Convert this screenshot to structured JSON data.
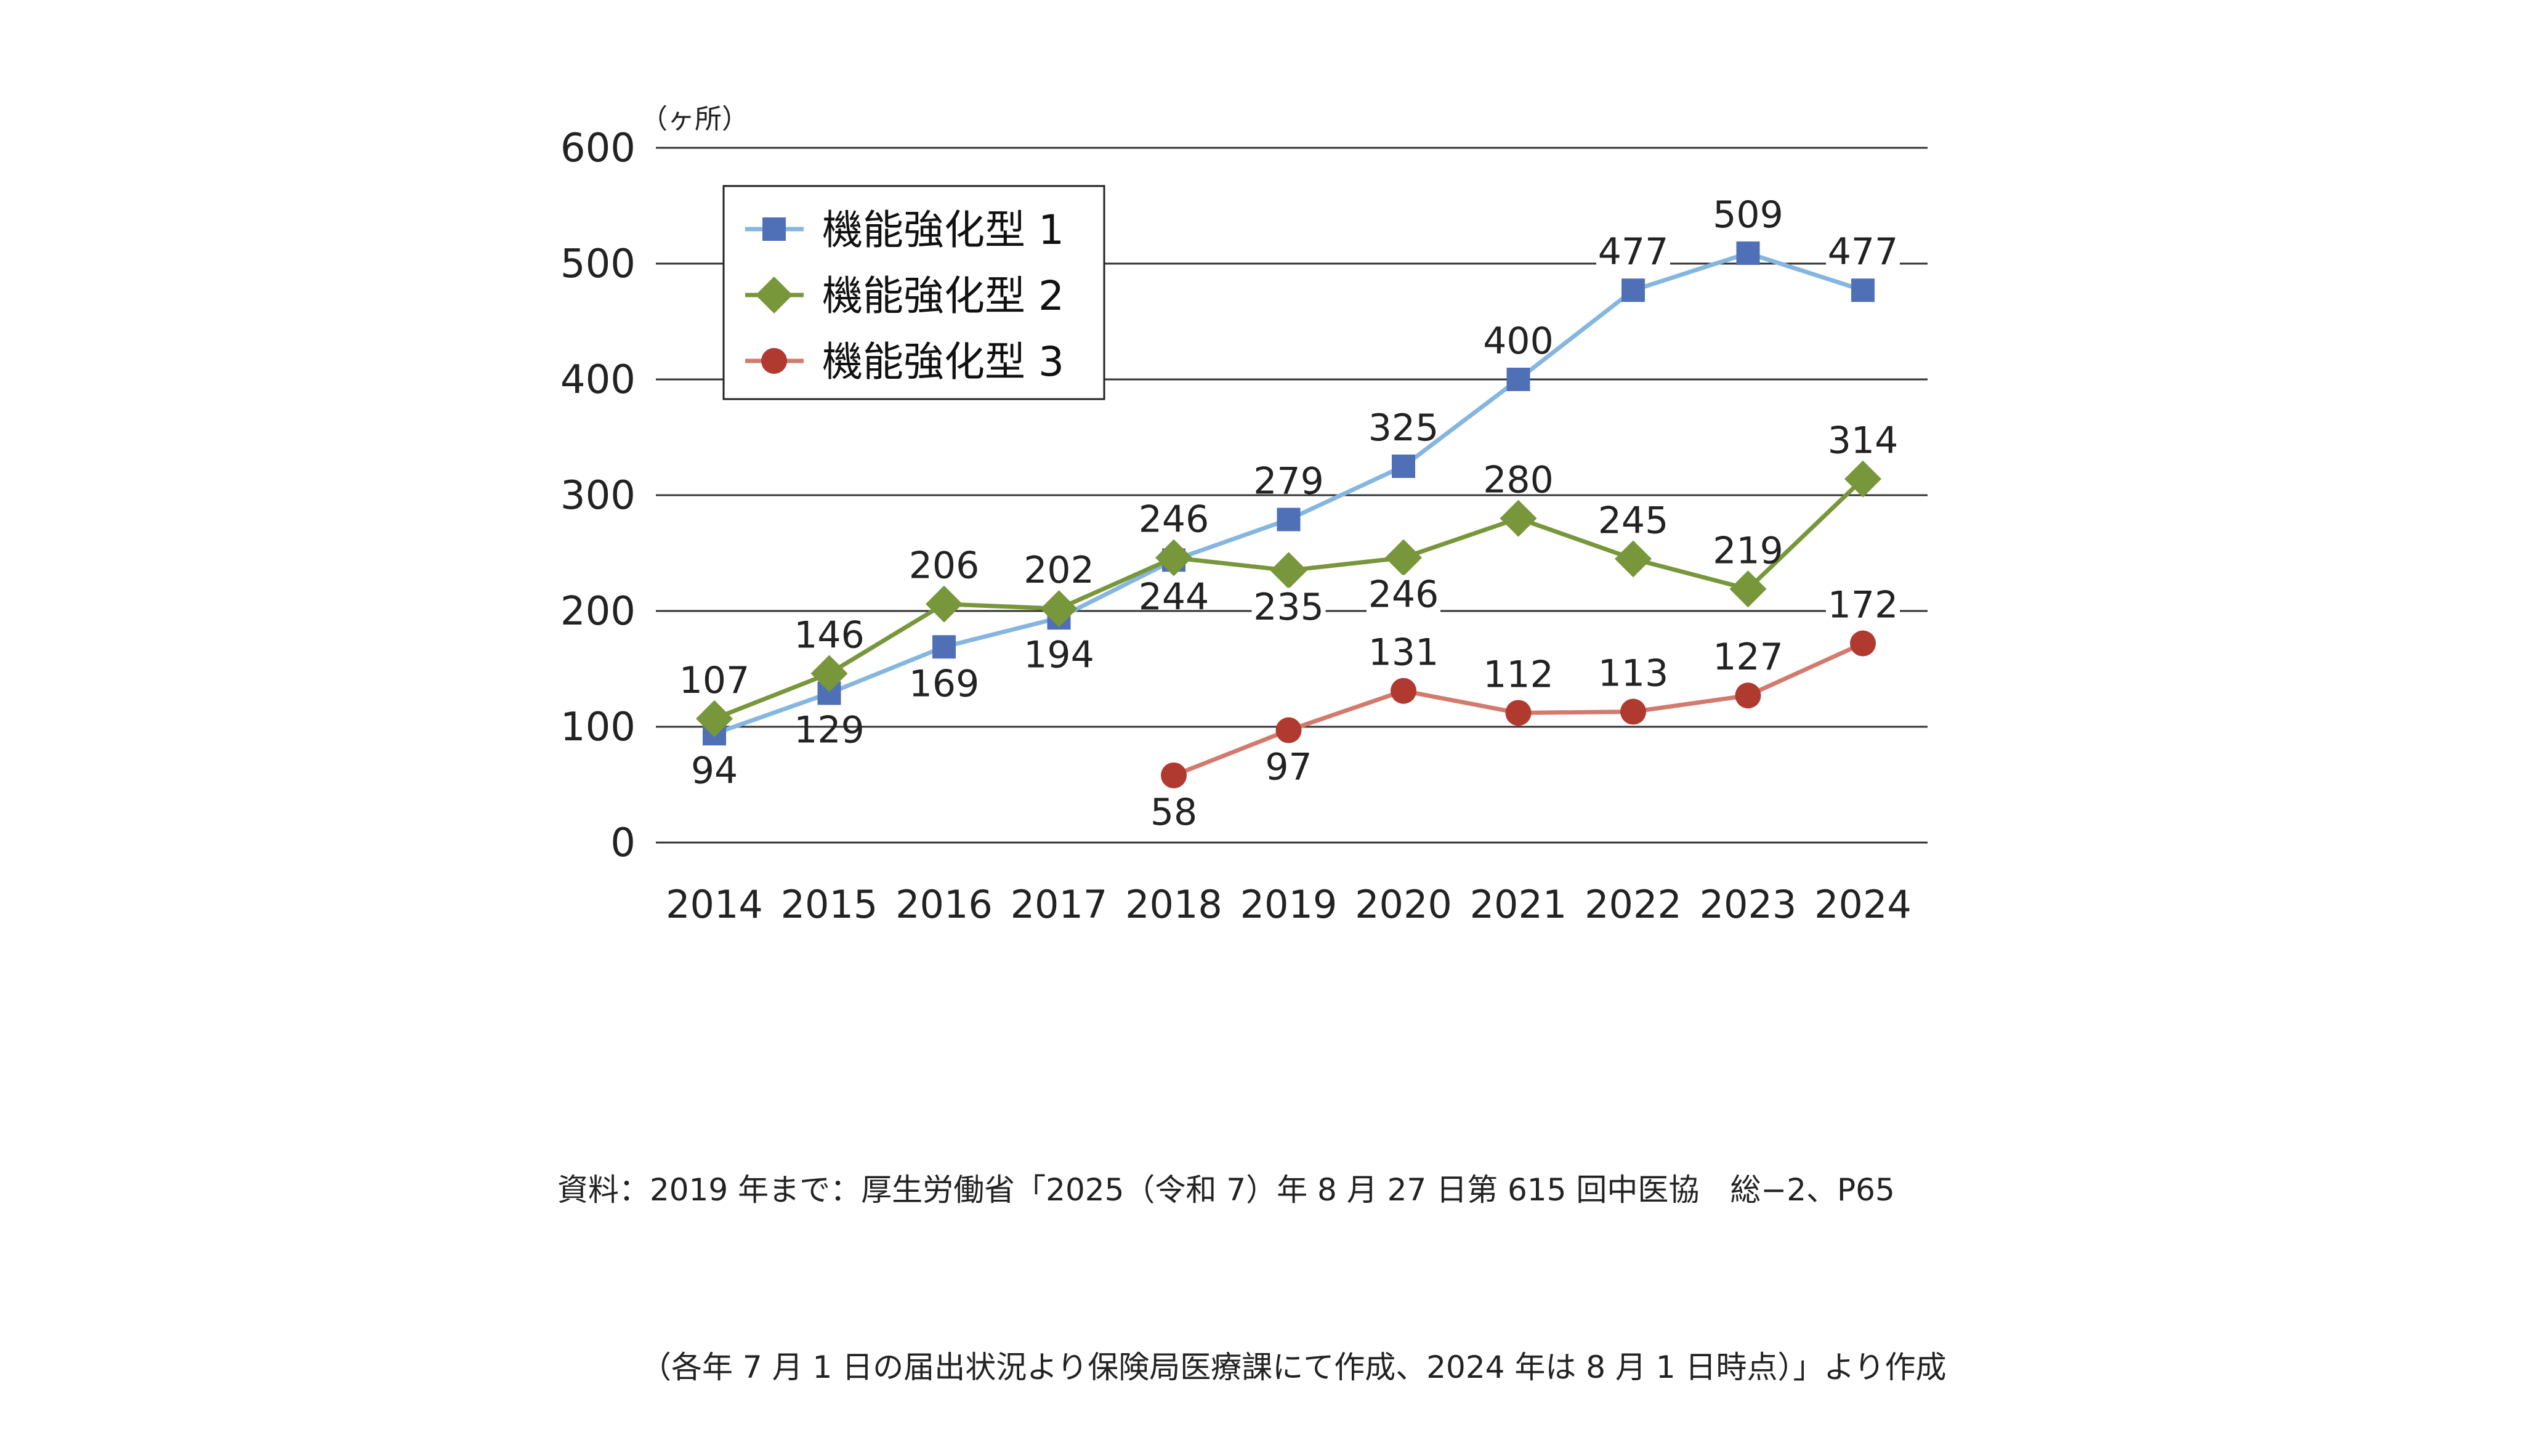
{
  "chart_data": {
    "type": "line",
    "unit_label": "（ヶ所）",
    "categories": [
      "2014",
      "2015",
      "2016",
      "2017",
      "2018",
      "2019",
      "2020",
      "2021",
      "2022",
      "2023",
      "2024"
    ],
    "ylim": [
      0,
      600
    ],
    "yticks": [
      0,
      100,
      200,
      300,
      400,
      500,
      600
    ],
    "grid": true,
    "legend_position": "top-left",
    "series": [
      {
        "name": "機能強化型 1",
        "marker": "square",
        "line_color": "#85b6e0",
        "marker_color": "#4f70b6",
        "values": [
          94,
          129,
          169,
          194,
          244,
          279,
          325,
          400,
          477,
          509,
          477
        ]
      },
      {
        "name": "機能強化型 2",
        "marker": "diamond",
        "line_color": "#77973a",
        "marker_color": "#77973a",
        "values": [
          107,
          146,
          206,
          202,
          246,
          235,
          246,
          280,
          245,
          219,
          314
        ]
      },
      {
        "name": "機能強化型 3",
        "marker": "circle",
        "line_color": "#d27a6e",
        "marker_color": "#b03a30",
        "values": [
          null,
          null,
          null,
          null,
          58,
          97,
          131,
          112,
          113,
          127,
          172
        ]
      }
    ]
  },
  "source": {
    "line1": "資料：2019 年まで：厚生労働省「2025（令和 7）年 8 月 27 日第 615 回中医協　総−2、P65",
    "line2": "（各年 7 月 1 日の届出状況より保険局医療課にて作成、2024 年は 8 月 1 日時点）」より作成"
  }
}
